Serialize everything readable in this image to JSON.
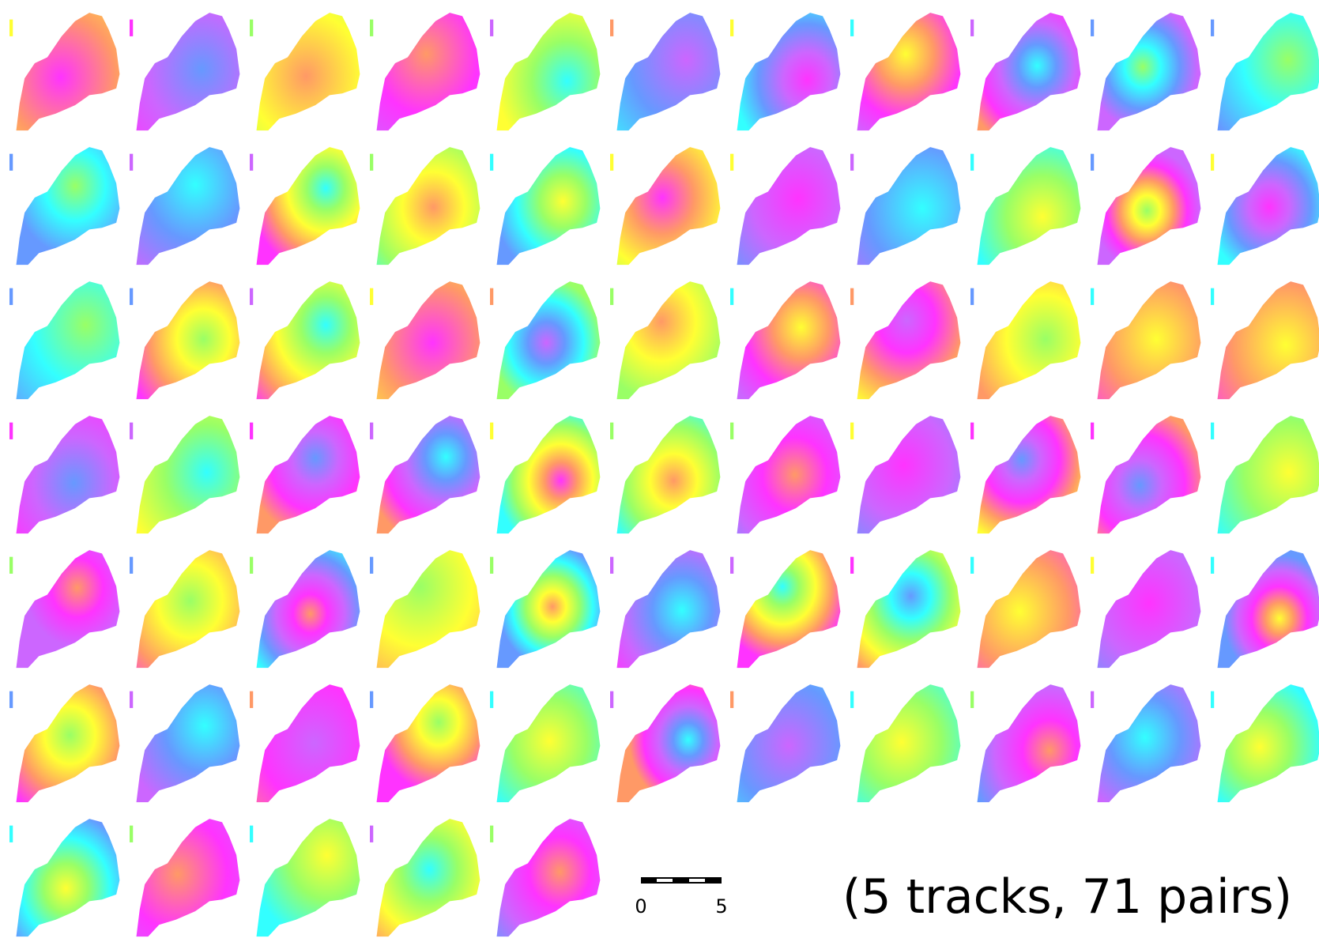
{
  "scale_bar": {
    "labels": [
      "0",
      "5"
    ]
  },
  "caption": "(5 tracks, 71 pairs)"
}
